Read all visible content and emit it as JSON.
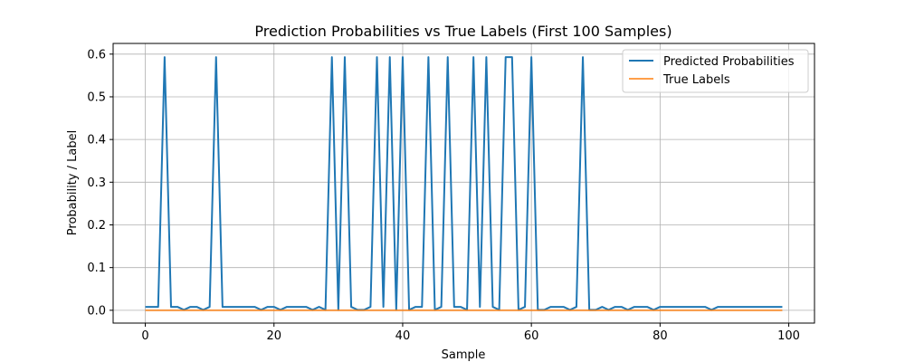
{
  "chart_data": {
    "type": "line",
    "title": "Prediction Probabilities vs True Labels (First 100 Samples)",
    "xlabel": "Sample",
    "ylabel": "Probability / Label",
    "xlim": [
      -5,
      104
    ],
    "ylim": [
      -0.03,
      0.625
    ],
    "xticks": [
      0,
      20,
      40,
      60,
      80,
      100
    ],
    "yticks": [
      0.0,
      0.1,
      0.2,
      0.3,
      0.4,
      0.5,
      0.6
    ],
    "ytick_labels": [
      "0.0",
      "0.1",
      "0.2",
      "0.3",
      "0.4",
      "0.5",
      "0.6"
    ],
    "grid": true,
    "legend_position": "top-right",
    "series": [
      {
        "name": "Predicted Probabilities",
        "color": "#1f77b4",
        "values": [
          0.008,
          0.008,
          0.008,
          0.593,
          0.008,
          0.008,
          0.001,
          0.008,
          0.008,
          0.001,
          0.008,
          0.593,
          0.008,
          0.008,
          0.008,
          0.008,
          0.008,
          0.008,
          0.001,
          0.008,
          0.008,
          0.001,
          0.008,
          0.008,
          0.008,
          0.008,
          0.001,
          0.008,
          0.001,
          0.593,
          0.001,
          0.593,
          0.008,
          0.001,
          0.001,
          0.008,
          0.593,
          0.008,
          0.593,
          0.001,
          0.593,
          0.001,
          0.008,
          0.008,
          0.593,
          0.001,
          0.008,
          0.593,
          0.008,
          0.008,
          0.001,
          0.593,
          0.008,
          0.593,
          0.008,
          0.001,
          0.593,
          0.593,
          0.001,
          0.008,
          0.593,
          0.001,
          0.001,
          0.008,
          0.008,
          0.008,
          0.001,
          0.008,
          0.593,
          0.001,
          0.001,
          0.008,
          0.001,
          0.008,
          0.008,
          0.001,
          0.008,
          0.008,
          0.008,
          0.001,
          0.008,
          0.008,
          0.008,
          0.008,
          0.008,
          0.008,
          0.008,
          0.008,
          0.001,
          0.008,
          0.008,
          0.008,
          0.008,
          0.008,
          0.008,
          0.008,
          0.008,
          0.008,
          0.008,
          0.008
        ]
      },
      {
        "name": "True Labels",
        "color": "#ff7f0e",
        "values": [
          0,
          0,
          0,
          0,
          0,
          0,
          0,
          0,
          0,
          0,
          0,
          0,
          0,
          0,
          0,
          0,
          0,
          0,
          0,
          0,
          0,
          0,
          0,
          0,
          0,
          0,
          0,
          0,
          0,
          0,
          0,
          0,
          0,
          0,
          0,
          0,
          0,
          0,
          0,
          0,
          0,
          0,
          0,
          0,
          0,
          0,
          0,
          0,
          0,
          0,
          0,
          0,
          0,
          0,
          0,
          0,
          0,
          0,
          0,
          0,
          0,
          0,
          0,
          0,
          0,
          0,
          0,
          0,
          0,
          0,
          0,
          0,
          0,
          0,
          0,
          0,
          0,
          0,
          0,
          0,
          0,
          0,
          0,
          0,
          0,
          0,
          0,
          0,
          0,
          0,
          0,
          0,
          0,
          0,
          0,
          0,
          0,
          0,
          0,
          0
        ]
      }
    ]
  }
}
